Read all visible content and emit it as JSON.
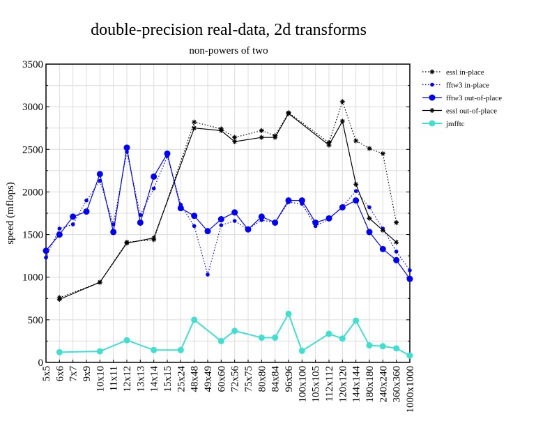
{
  "chart_data": {
    "type": "line",
    "title": "double-precision real-data, 2d transforms",
    "subtitle": "non-powers of two",
    "xlabel": "",
    "ylabel": "speed (mflops)",
    "ylim": [
      0,
      3500
    ],
    "yticks": [
      0,
      500,
      1000,
      1500,
      2000,
      2500,
      3000,
      3500
    ],
    "grid": true,
    "legend_position": "right-top",
    "categories": [
      "5x5",
      "6x6",
      "7x7",
      "9x9",
      "10x10",
      "11x11",
      "12x12",
      "13x13",
      "14x14",
      "15x15",
      "25x24",
      "48x48",
      "49x49",
      "60x60",
      "72x56",
      "75x75",
      "80x80",
      "84x84",
      "96x96",
      "100x100",
      "105x105",
      "112x112",
      "120x120",
      "144x144",
      "180x180",
      "240x240",
      "360x360",
      "1000x1000"
    ],
    "series": [
      {
        "name": "essl in-place",
        "color": "#000000",
        "dash": "dotted",
        "marker": "star",
        "values": [
          null,
          760,
          null,
          null,
          940,
          null,
          1410,
          null,
          1440,
          null,
          null,
          2820,
          null,
          2740,
          2640,
          null,
          2720,
          2660,
          2930,
          null,
          null,
          2580,
          3060,
          2600,
          2510,
          2450,
          1640,
          null
        ]
      },
      {
        "name": "fftw3 in-place",
        "color": "#0000ff",
        "dash": "dotted",
        "marker": "small-dot",
        "values": [
          1230,
          1570,
          1620,
          1900,
          2130,
          1620,
          2470,
          1730,
          2040,
          2420,
          1850,
          1600,
          1030,
          1610,
          1660,
          1560,
          1670,
          1640,
          1880,
          1860,
          1600,
          1680,
          1830,
          2010,
          1820,
          1570,
          1300,
          1080
        ]
      },
      {
        "name": "fftw3 out-of-place",
        "color": "#0000ff",
        "dash": "solid",
        "marker": "dot",
        "values": [
          1310,
          1500,
          1710,
          1770,
          2210,
          1530,
          2520,
          1640,
          2180,
          2450,
          1810,
          1720,
          1540,
          1680,
          1760,
          1560,
          1710,
          1640,
          1900,
          1900,
          1640,
          1690,
          1820,
          1900,
          1530,
          1330,
          1200,
          980
        ]
      },
      {
        "name": "essl out-of-place",
        "color": "#000000",
        "dash": "solid",
        "marker": "star",
        "values": [
          null,
          740,
          null,
          null,
          940,
          null,
          1400,
          null,
          1460,
          null,
          null,
          2750,
          null,
          2720,
          2590,
          null,
          2640,
          2640,
          2920,
          null,
          null,
          2550,
          2830,
          2090,
          1690,
          1550,
          1410,
          null
        ]
      },
      {
        "name": "jmfftc",
        "color": "#40e0d0",
        "dash": "solid",
        "marker": "dot",
        "values": [
          null,
          120,
          null,
          null,
          130,
          null,
          260,
          null,
          145,
          null,
          145,
          500,
          null,
          250,
          370,
          null,
          290,
          290,
          570,
          135,
          null,
          335,
          280,
          490,
          200,
          190,
          165,
          80
        ]
      }
    ]
  }
}
